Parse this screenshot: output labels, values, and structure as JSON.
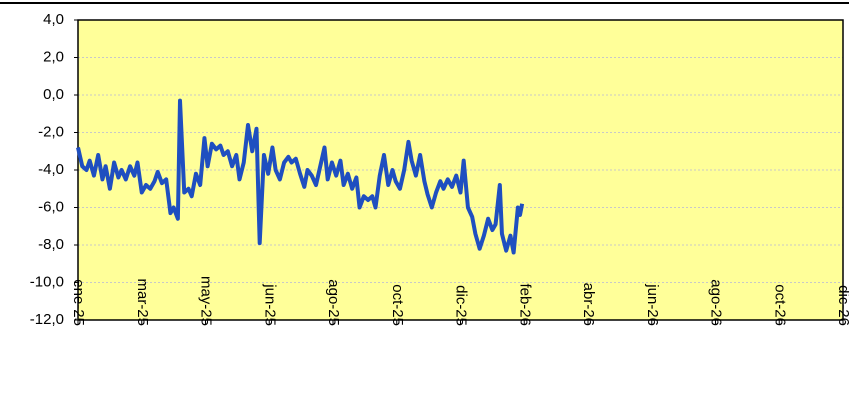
{
  "chart_data": {
    "type": "line",
    "x": [
      0,
      4,
      8,
      11,
      15,
      19,
      23,
      26,
      30,
      34,
      38,
      41,
      45,
      49,
      53,
      56,
      60,
      64,
      68,
      72,
      75,
      79,
      83,
      87,
      90,
      94,
      96,
      100,
      104,
      107,
      111,
      115,
      119,
      122,
      126,
      130,
      134,
      137,
      141,
      145,
      149,
      152,
      156,
      160,
      164,
      168,
      171,
      175,
      179,
      183,
      186,
      190,
      194,
      198,
      201,
      205,
      209,
      213,
      216,
      220,
      224,
      228,
      232,
      235,
      239,
      243,
      247,
      250,
      254,
      258,
      262,
      265,
      269,
      273,
      277,
      280,
      284,
      288,
      292,
      296,
      299,
      303,
      307,
      311,
      314,
      318,
      322,
      326,
      329,
      333,
      337,
      341,
      344,
      348,
      352,
      356,
      360,
      363,
      367,
      371,
      374,
      378,
      382,
      386,
      390,
      393,
      397,
      399,
      403,
      407,
      410,
      414,
      416,
      418
    ],
    "series": [
      {
        "color": "#1f4fc0",
        "values": [
          -2.8,
          -3.8,
          -4.0,
          -3.5,
          -4.3,
          -3.2,
          -4.5,
          -3.8,
          -5.0,
          -3.6,
          -4.4,
          -4.0,
          -4.5,
          -3.8,
          -4.3,
          -3.6,
          -5.2,
          -4.8,
          -5.0,
          -4.6,
          -4.1,
          -4.7,
          -4.5,
          -6.3,
          -6.0,
          -6.6,
          -0.3,
          -5.2,
          -5.0,
          -5.4,
          -4.2,
          -4.8,
          -2.3,
          -3.8,
          -2.6,
          -2.9,
          -2.7,
          -3.2,
          -3.0,
          -3.8,
          -3.2,
          -4.5,
          -3.6,
          -1.6,
          -3.0,
          -1.8,
          -7.9,
          -3.2,
          -4.2,
          -2.8,
          -4.0,
          -4.5,
          -3.6,
          -3.3,
          -3.6,
          -3.4,
          -4.2,
          -4.9,
          -4.0,
          -4.3,
          -4.8,
          -3.8,
          -2.8,
          -4.5,
          -3.6,
          -4.3,
          -3.5,
          -4.8,
          -4.2,
          -5.0,
          -4.4,
          -6.0,
          -5.4,
          -5.6,
          -5.4,
          -6.0,
          -4.3,
          -3.2,
          -4.8,
          -4.0,
          -4.6,
          -5.0,
          -4.0,
          -2.5,
          -3.5,
          -4.3,
          -3.2,
          -4.6,
          -5.3,
          -6.0,
          -5.2,
          -4.6,
          -5.0,
          -4.5,
          -4.9,
          -4.3,
          -5.2,
          -3.5,
          -6.0,
          -6.5,
          -7.4,
          -8.2,
          -7.5,
          -6.6,
          -7.2,
          -6.9,
          -4.8,
          -7.4,
          -8.3,
          -7.5,
          -8.4,
          -6.0,
          -6.4,
          -5.8
        ]
      }
    ],
    "xlim": [
      0,
      720
    ],
    "xticks": [
      {
        "value": 0,
        "label": "ene-25"
      },
      {
        "value": 60,
        "label": "mar-25"
      },
      {
        "value": 120,
        "label": "may-25"
      },
      {
        "value": 180,
        "label": "jun-25"
      },
      {
        "value": 240,
        "label": "ago-25"
      },
      {
        "value": 300,
        "label": "oct-25"
      },
      {
        "value": 360,
        "label": "dic-25"
      },
      {
        "value": 420,
        "label": "feb-26"
      },
      {
        "value": 480,
        "label": "abr-26"
      },
      {
        "value": 540,
        "label": "jun-26"
      },
      {
        "value": 600,
        "label": "ago-26"
      },
      {
        "value": 660,
        "label": "oct-26"
      },
      {
        "value": 720,
        "label": "dic-26"
      }
    ],
    "ylim": [
      -12,
      4
    ],
    "yticks": [
      {
        "value": 4,
        "label": "4,0"
      },
      {
        "value": 2,
        "label": "2,0"
      },
      {
        "value": 0,
        "label": "0,0"
      },
      {
        "value": -2,
        "label": "-2,0"
      },
      {
        "value": -4,
        "label": "-4,0"
      },
      {
        "value": -6,
        "label": "-6,0"
      },
      {
        "value": -8,
        "label": "-8,0"
      },
      {
        "value": -10,
        "label": "-10,0"
      },
      {
        "value": -12,
        "label": "-12,0"
      }
    ],
    "grid": true
  }
}
